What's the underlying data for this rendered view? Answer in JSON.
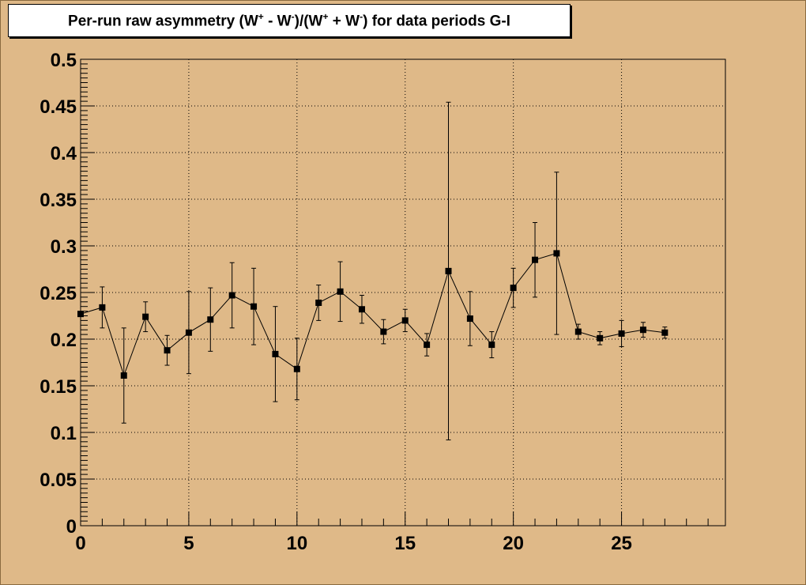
{
  "chart_data": {
    "type": "scatter",
    "title_parts": {
      "a": "Per-run raw asymmetry (W",
      "sup1": "+",
      "b": " - W",
      "sup2": "-",
      "c": ")/(W",
      "sup3": "+",
      "d": " + W",
      "sup4": "-",
      "e": ") for data periods G-I"
    },
    "xlabel": "",
    "ylabel": "",
    "xlim": [
      0,
      29.8
    ],
    "ylim": [
      0,
      0.5
    ],
    "x_ticks": [
      0,
      5,
      10,
      15,
      20,
      25
    ],
    "x_tick_labels": [
      "0",
      "5",
      "10",
      "15",
      "20",
      "25"
    ],
    "y_ticks": [
      0,
      0.05,
      0.1,
      0.15,
      0.2,
      0.25,
      0.3,
      0.35,
      0.4,
      0.45,
      0.5
    ],
    "y_tick_labels": [
      "0",
      "0.05",
      "0.1",
      "0.15",
      "0.2",
      "0.25",
      "0.3",
      "0.35",
      "0.4",
      "0.45",
      "0.5"
    ],
    "grid": true,
    "marker": "square",
    "connected": true,
    "colors": {
      "frame_background": "#dfb988",
      "marker": "#000000",
      "grid": "#000000"
    },
    "points": [
      {
        "x": 0,
        "y": 0.227,
        "err": 0.0
      },
      {
        "x": 1,
        "y": 0.234,
        "err": 0.022
      },
      {
        "x": 2,
        "y": 0.161,
        "err": 0.051
      },
      {
        "x": 3,
        "y": 0.224,
        "err": 0.016
      },
      {
        "x": 4,
        "y": 0.188,
        "err": 0.016
      },
      {
        "x": 5,
        "y": 0.207,
        "err": 0.044
      },
      {
        "x": 6,
        "y": 0.221,
        "err": 0.034
      },
      {
        "x": 7,
        "y": 0.247,
        "err": 0.035
      },
      {
        "x": 8,
        "y": 0.235,
        "err": 0.041
      },
      {
        "x": 9,
        "y": 0.184,
        "err": 0.051
      },
      {
        "x": 10,
        "y": 0.168,
        "err": 0.033
      },
      {
        "x": 11,
        "y": 0.239,
        "err": 0.019
      },
      {
        "x": 12,
        "y": 0.251,
        "err": 0.032
      },
      {
        "x": 13,
        "y": 0.232,
        "err": 0.015
      },
      {
        "x": 14,
        "y": 0.208,
        "err": 0.013
      },
      {
        "x": 15,
        "y": 0.22,
        "err": 0.012
      },
      {
        "x": 16,
        "y": 0.194,
        "err": 0.012
      },
      {
        "x": 17,
        "y": 0.273,
        "err": 0.181
      },
      {
        "x": 18,
        "y": 0.222,
        "err": 0.029
      },
      {
        "x": 19,
        "y": 0.194,
        "err": 0.014
      },
      {
        "x": 20,
        "y": 0.255,
        "err": 0.021
      },
      {
        "x": 21,
        "y": 0.285,
        "err": 0.04
      },
      {
        "x": 22,
        "y": 0.292,
        "err": 0.087
      },
      {
        "x": 23,
        "y": 0.208,
        "err": 0.008
      },
      {
        "x": 24,
        "y": 0.201,
        "err": 0.007
      },
      {
        "x": 25,
        "y": 0.206,
        "err": 0.014
      },
      {
        "x": 26,
        "y": 0.21,
        "err": 0.008
      },
      {
        "x": 27,
        "y": 0.207,
        "err": 0.006
      }
    ]
  }
}
